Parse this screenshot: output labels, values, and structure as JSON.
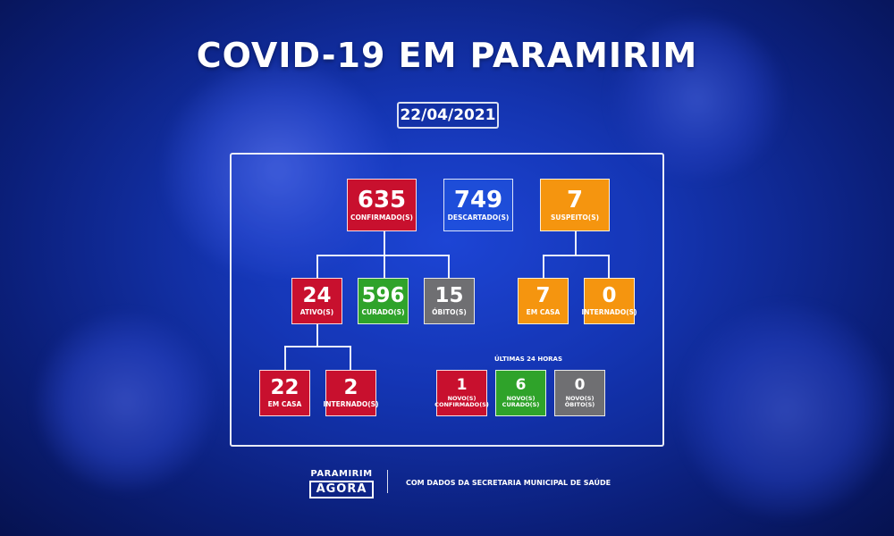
{
  "title": "COVID-19 EM PARAMIRIM",
  "date": "22/04/2021",
  "colors": {
    "red": "#c8102e",
    "orange": "#f5950f",
    "green": "#2fa32a",
    "gray": "#6f6f72",
    "background": "#1434b0"
  },
  "confirmed": {
    "value": "635",
    "label": "CONFIRMADO(S)"
  },
  "discarded": {
    "value": "749",
    "label": "DESCARTADO(S)"
  },
  "suspected": {
    "value": "7",
    "label": "SUSPEITO(S)"
  },
  "active": {
    "value": "24",
    "label": "ATIVO(S)"
  },
  "cured": {
    "value": "596",
    "label": "CURADO(S)"
  },
  "deaths": {
    "value": "15",
    "label": "ÓBITO(S)"
  },
  "suspected_home": {
    "value": "7",
    "label": "EM CASA"
  },
  "suspected_hospital": {
    "value": "0",
    "label": "INTERNADO(S)"
  },
  "active_home": {
    "value": "22",
    "label": "EM CASA"
  },
  "active_hospital": {
    "value": "2",
    "label": "INTERNADO(S)"
  },
  "last24": {
    "heading": "ÚLTIMAS 24 HORAS",
    "new_confirmed": {
      "value": "1",
      "label1": "NOVO(S)",
      "label2": "CONFIRMADO(S)"
    },
    "new_cured": {
      "value": "6",
      "label1": "NOVO(S)",
      "label2": "CURADO(S)"
    },
    "new_deaths": {
      "value": "0",
      "label1": "NOVO(S)",
      "label2": "ÓBITO(S)"
    }
  },
  "footer": {
    "logo_top": "PARAMIRIM",
    "logo_bottom": "AGORA",
    "source": "COM DADOS DA SECRETARIA MUNICIPAL DE SAÚDE"
  }
}
